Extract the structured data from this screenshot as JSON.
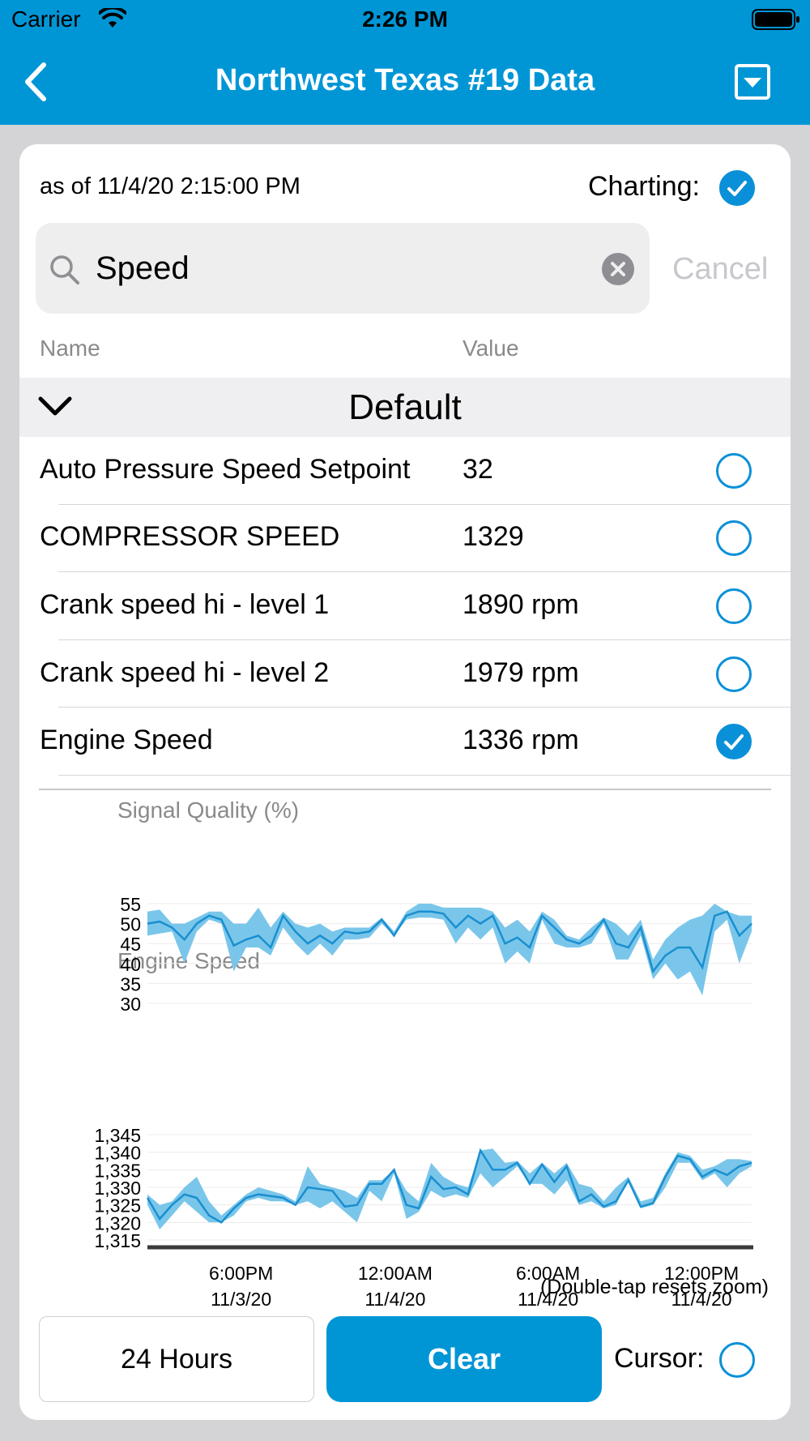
{
  "status_bar": {
    "carrier": "Carrier",
    "time": "2:26 PM"
  },
  "nav": {
    "title": "Northwest Texas #19 Data"
  },
  "header": {
    "as_of": "as of 11/4/20 2:15:00 PM",
    "charting_label": "Charting:"
  },
  "search": {
    "value": "Speed",
    "cancel_label": "Cancel"
  },
  "columns": {
    "name": "Name",
    "value": "Value"
  },
  "group": {
    "title": "Default"
  },
  "rows": [
    {
      "name": "Auto Pressure Speed Setpoint",
      "value": "32",
      "charted": false
    },
    {
      "name": "COMPRESSOR SPEED",
      "value": "1329",
      "charted": false
    },
    {
      "name": "Crank speed hi - level 1",
      "value": "1890 rpm",
      "charted": false
    },
    {
      "name": "Crank speed hi - level 2",
      "value": "1979 rpm",
      "charted": false
    },
    {
      "name": "Engine Speed",
      "value": "1336 rpm",
      "charted": true
    }
  ],
  "chart_data": [
    {
      "type": "area",
      "title": "Signal Quality (%)",
      "ylim": [
        30,
        55
      ],
      "yticks": [
        "55",
        "50",
        "45",
        "40",
        "35",
        "30"
      ],
      "x": [
        0,
        1,
        2,
        3,
        4,
        5,
        6,
        7,
        8,
        9,
        10,
        11,
        12,
        13,
        14,
        15,
        16,
        17,
        18,
        19,
        20,
        21,
        22,
        23,
        24,
        25,
        26,
        27,
        28,
        29,
        30,
        31,
        32,
        33,
        34,
        35,
        36,
        37,
        38,
        39,
        40,
        41,
        42,
        43,
        44,
        45,
        46,
        47,
        48,
        49
      ],
      "series": [
        {
          "values": [
            50,
            50.5,
            49,
            46,
            50,
            52,
            51,
            44.5,
            46,
            47,
            44,
            52,
            48,
            45,
            47,
            45,
            48,
            47.5,
            48,
            51,
            47,
            52,
            53,
            53,
            52.5,
            49,
            52,
            50,
            52,
            45,
            46.5,
            44,
            52,
            49,
            46,
            45,
            47,
            51,
            45,
            44,
            49,
            38,
            42,
            44,
            44,
            39,
            52,
            53,
            47,
            50
          ]
        },
        {
          "values": [
            47,
            47.5,
            48,
            40,
            48,
            51,
            50,
            38,
            44,
            44,
            42,
            49,
            45,
            42,
            45,
            42,
            46,
            46,
            46.5,
            50,
            47,
            51,
            51.5,
            51.5,
            51,
            45,
            49,
            46,
            49,
            40,
            43,
            40,
            51,
            45,
            44,
            44,
            45,
            50,
            41,
            41,
            47,
            36,
            40,
            36,
            38,
            32,
            48,
            51,
            40,
            48
          ]
        },
        {
          "values": [
            53,
            53.5,
            50,
            50,
            51.5,
            53,
            53,
            50,
            50,
            54,
            49,
            53,
            50,
            49,
            50,
            48,
            49,
            49,
            49,
            51.5,
            48,
            53,
            55,
            55,
            54,
            54,
            54,
            54,
            53,
            49,
            51,
            48,
            53,
            51,
            47,
            46,
            49,
            51.5,
            50,
            47,
            51,
            41,
            46,
            49,
            51,
            52,
            55,
            53,
            52,
            52
          ]
        }
      ]
    },
    {
      "type": "area",
      "title": "Engine Speed",
      "ylim": [
        1315,
        1345
      ],
      "yticks": [
        "1,345",
        "1,340",
        "1,335",
        "1,330",
        "1,325",
        "1,320",
        "1,315"
      ],
      "x_ticks": [
        {
          "l1": "6:00PM",
          "l2": "11/3/20"
        },
        {
          "l1": "12:00AM",
          "l2": "11/4/20"
        },
        {
          "l1": "6:00AM",
          "l2": "11/4/20"
        },
        {
          "l1": "12:00PM",
          "l2": "11/4/20"
        }
      ],
      "x": [
        0,
        1,
        2,
        3,
        4,
        5,
        6,
        7,
        8,
        9,
        10,
        11,
        12,
        13,
        14,
        15,
        16,
        17,
        18,
        19,
        20,
        21,
        22,
        23,
        24,
        25,
        26,
        27,
        28,
        29,
        30,
        31,
        32,
        33,
        34,
        35,
        36,
        37,
        38,
        39,
        40,
        41,
        42,
        43,
        44,
        45,
        46,
        47,
        48,
        49
      ],
      "series": [
        {
          "values": [
            1327,
            1321,
            1325,
            1328,
            1327,
            1322,
            1320,
            1324,
            1327,
            1328,
            1327.5,
            1327,
            1325,
            1330,
            1329.5,
            1329,
            1324.5,
            1325,
            1331,
            1331,
            1335,
            1325,
            1324,
            1333,
            1329.5,
            1330,
            1328,
            1340.5,
            1335,
            1335,
            1337,
            1331,
            1336.5,
            1331.5,
            1336,
            1326,
            1328,
            1324.5,
            1326,
            1332,
            1324.5,
            1325.5,
            1333,
            1339,
            1338,
            1333,
            1335,
            1333.5,
            1336,
            1337
          ]
        },
        {
          "values": [
            1325,
            1318,
            1322,
            1326,
            1323,
            1320,
            1320,
            1322,
            1326,
            1327,
            1326,
            1326,
            1325,
            1326,
            1324,
            1326,
            1323,
            1320,
            1329,
            1326,
            1334,
            1321,
            1323,
            1329,
            1327,
            1328,
            1327,
            1334,
            1330,
            1333,
            1336,
            1331,
            1331,
            1328,
            1332,
            1325,
            1326,
            1324,
            1325,
            1332,
            1324,
            1325,
            1330,
            1337,
            1337,
            1332,
            1334,
            1330,
            1334,
            1336
          ]
        },
        {
          "values": [
            1328,
            1325,
            1326,
            1330,
            1333,
            1326,
            1322,
            1325,
            1328,
            1330,
            1329,
            1328,
            1326,
            1336,
            1331,
            1330,
            1329,
            1327,
            1332,
            1332,
            1335,
            1329,
            1326,
            1337,
            1333,
            1331,
            1330,
            1340.5,
            1341,
            1337,
            1337.5,
            1334,
            1337,
            1334,
            1337,
            1331,
            1330,
            1326,
            1330,
            1333,
            1326,
            1327,
            1334,
            1340,
            1339,
            1335,
            1336,
            1338,
            1338,
            1337.5
          ]
        }
      ],
      "note": "(Double-tap resets zoom)"
    }
  ],
  "footer": {
    "range_label": "24 Hours",
    "clear_label": "Clear",
    "cursor_label": "Cursor:"
  },
  "colors": {
    "accent": "#0096d6",
    "series_line": "#1a8fd0",
    "band_fill": "#7ac6ea"
  }
}
